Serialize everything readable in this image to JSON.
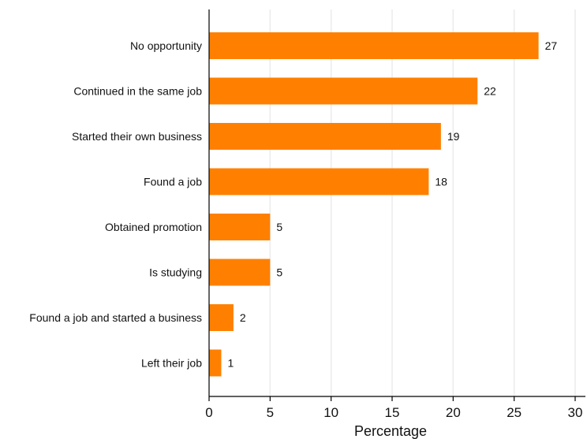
{
  "chart_data": {
    "type": "bar",
    "orientation": "horizontal",
    "title": "",
    "xlabel": "Percentage",
    "ylabel": "",
    "categories": [
      "No opportunity",
      "Continued in the same job",
      "Started their own business",
      "Found a job",
      "Obtained promotion",
      "Is studying",
      "Found a job and started a business",
      "Left their job"
    ],
    "values": [
      27,
      22,
      19,
      18,
      5,
      5,
      2,
      1
    ],
    "data_labels": [
      "27",
      "22",
      "19",
      "18",
      "5",
      "5",
      "2",
      "1"
    ],
    "xlim": [
      0,
      30
    ],
    "xticks": [
      0,
      5,
      10,
      15,
      20,
      25,
      30
    ],
    "xtick_labels": [
      "0",
      "5",
      "10",
      "15",
      "20",
      "25",
      "30"
    ],
    "grid": true,
    "legend": "none",
    "colors": {
      "bar": "#FF8000",
      "grid": "#EBEBEB",
      "axis": "#000000"
    }
  }
}
